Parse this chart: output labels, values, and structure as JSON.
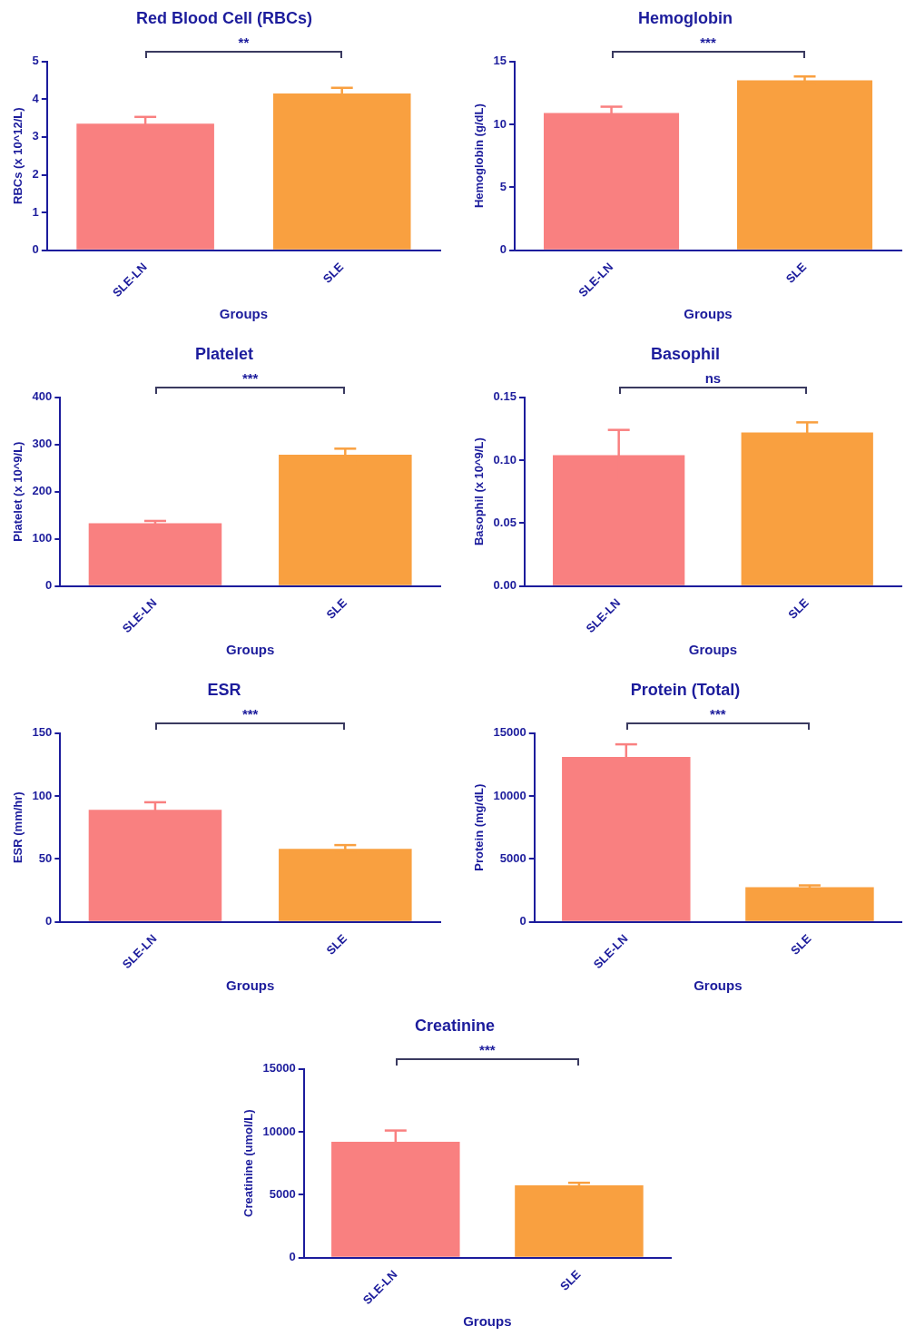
{
  "chart_data": [
    {
      "type": "bar",
      "title": "Red Blood Cell (RBCs)",
      "xlabel": "Groups",
      "ylabel": "RBCs (x 10^12/L)",
      "categories": [
        "SLE-LN",
        "SLE"
      ],
      "values": [
        3.35,
        4.15
      ],
      "errors": [
        0.18,
        0.15
      ],
      "colors": [
        "#f98080",
        "#f9a040"
      ],
      "ylim": [
        0,
        5
      ],
      "yticks": [
        0,
        1,
        2,
        3,
        4,
        5
      ],
      "grid": false,
      "legend": false,
      "annotations": [
        "**"
      ]
    },
    {
      "type": "bar",
      "title": "Hemoglobin",
      "xlabel": "Groups",
      "ylabel": "Hemoglobin (g/dL)",
      "categories": [
        "SLE-LN",
        "SLE"
      ],
      "values": [
        10.9,
        13.5
      ],
      "errors": [
        0.5,
        0.3
      ],
      "colors": [
        "#f98080",
        "#f9a040"
      ],
      "ylim": [
        0,
        15
      ],
      "yticks": [
        0,
        5,
        10,
        15
      ],
      "grid": false,
      "legend": false,
      "annotations": [
        "***"
      ]
    },
    {
      "type": "bar",
      "title": "Platelet",
      "xlabel": "Groups",
      "ylabel": "Platelet (x 10^9/L)",
      "categories": [
        "SLE-LN",
        "SLE"
      ],
      "values": [
        133,
        278
      ],
      "errors": [
        5,
        13
      ],
      "colors": [
        "#f98080",
        "#f9a040"
      ],
      "ylim": [
        0,
        400
      ],
      "yticks": [
        0,
        100,
        200,
        300,
        400
      ],
      "grid": false,
      "legend": false,
      "annotations": [
        "***"
      ]
    },
    {
      "type": "bar",
      "title": "Basophil",
      "xlabel": "Groups",
      "ylabel": "Basophil (x 10^9/L)",
      "categories": [
        "SLE-LN",
        "SLE"
      ],
      "values": [
        0.104,
        0.122
      ],
      "errors": [
        0.02,
        0.008
      ],
      "colors": [
        "#f98080",
        "#f9a040"
      ],
      "ylim": [
        0,
        0.15
      ],
      "yticks": [
        {
          "value": 0,
          "label": "0.00"
        },
        {
          "value": 0.05,
          "label": "0.05"
        },
        {
          "value": 0.1,
          "label": "0.10"
        },
        {
          "value": 0.15,
          "label": "0.15"
        }
      ],
      "grid": false,
      "legend": false,
      "annotations": [
        "ns"
      ]
    },
    {
      "type": "bar",
      "title": "ESR",
      "xlabel": "Groups",
      "ylabel": "ESR (mm/hr)",
      "categories": [
        "SLE-LN",
        "SLE"
      ],
      "values": [
        89,
        58
      ],
      "errors": [
        6,
        3
      ],
      "colors": [
        "#f98080",
        "#f9a040"
      ],
      "ylim": [
        0,
        150
      ],
      "yticks": [
        0,
        50,
        100,
        150
      ],
      "grid": false,
      "legend": false,
      "annotations": [
        "***"
      ]
    },
    {
      "type": "bar",
      "title": "Protein (Total)",
      "xlabel": "Groups",
      "ylabel": "Protein (mg/dL)",
      "categories": [
        "SLE-LN",
        "SLE"
      ],
      "values": [
        13100,
        2750
      ],
      "errors": [
        1000,
        150
      ],
      "colors": [
        "#f98080",
        "#f9a040"
      ],
      "ylim": [
        0,
        15000
      ],
      "yticks": [
        0,
        5000,
        10000,
        15000
      ],
      "grid": false,
      "legend": false,
      "annotations": [
        "***"
      ]
    },
    {
      "type": "bar",
      "title": "Creatinine",
      "xlabel": "Groups",
      "ylabel": "Creatinine (umol/L)",
      "categories": [
        "SLE-LN",
        "SLE"
      ],
      "values": [
        9200,
        5750
      ],
      "errors": [
        900,
        200
      ],
      "colors": [
        "#f98080",
        "#f9a040"
      ],
      "ylim": [
        0,
        15000
      ],
      "yticks": [
        0,
        5000,
        10000,
        15000
      ],
      "grid": false,
      "legend": false,
      "annotations": [
        "***"
      ]
    }
  ]
}
